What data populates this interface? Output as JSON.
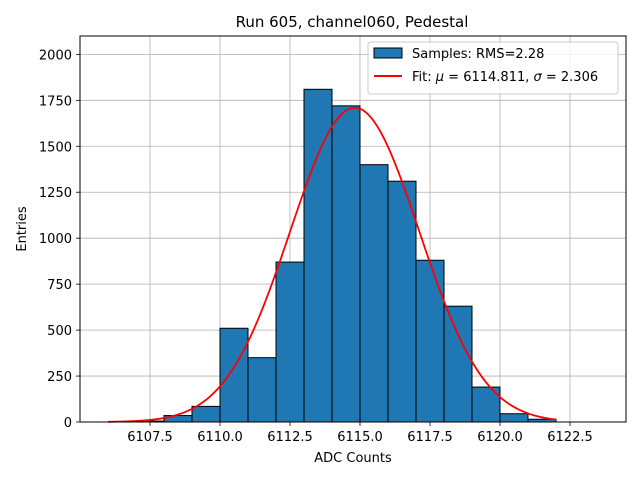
{
  "chart_data": {
    "type": "bar",
    "title": "Run 605, channel060, Pedestal",
    "xlabel": "ADC Counts",
    "ylabel": "Entries",
    "xlim": [
      6105.0,
      6124.5
    ],
    "ylim": [
      0,
      2100
    ],
    "xticks": [
      6107.5,
      6110.0,
      6112.5,
      6115.0,
      6117.5,
      6120.0,
      6122.5
    ],
    "xtick_labels": [
      "6107.5",
      "6110.0",
      "6112.5",
      "6115.0",
      "6117.5",
      "6120.0",
      "6122.5"
    ],
    "yticks": [
      0,
      250,
      500,
      750,
      1000,
      1250,
      1500,
      1750,
      2000
    ],
    "ytick_labels": [
      "0",
      "250",
      "500",
      "750",
      "1000",
      "1250",
      "1500",
      "1750",
      "2000"
    ],
    "grid": true,
    "legend_position": "top-right",
    "histogram": {
      "name": "Samples: RMS=2.28",
      "color": "#1f77b4",
      "edge_color": "#000000",
      "bin_edges": [
        6106,
        6107,
        6108,
        6109,
        6110,
        6111,
        6112,
        6113,
        6114,
        6115,
        6116,
        6117,
        6118,
        6119,
        6120,
        6121,
        6122,
        6123
      ],
      "counts": [
        0,
        5,
        35,
        85,
        510,
        350,
        870,
        1810,
        1720,
        1400,
        1310,
        880,
        630,
        190,
        45,
        15,
        0
      ]
    },
    "fit": {
      "name": "Fit: μ = 6114.811, σ = 2.306",
      "label_parts": [
        "Fit: ",
        "μ",
        " = 6114.811, ",
        "σ",
        " = 2.306"
      ],
      "color": "#ff0000",
      "mu": 6114.811,
      "sigma": 2.306,
      "amplitude": 1710,
      "x_range": [
        6106,
        6122
      ]
    }
  }
}
